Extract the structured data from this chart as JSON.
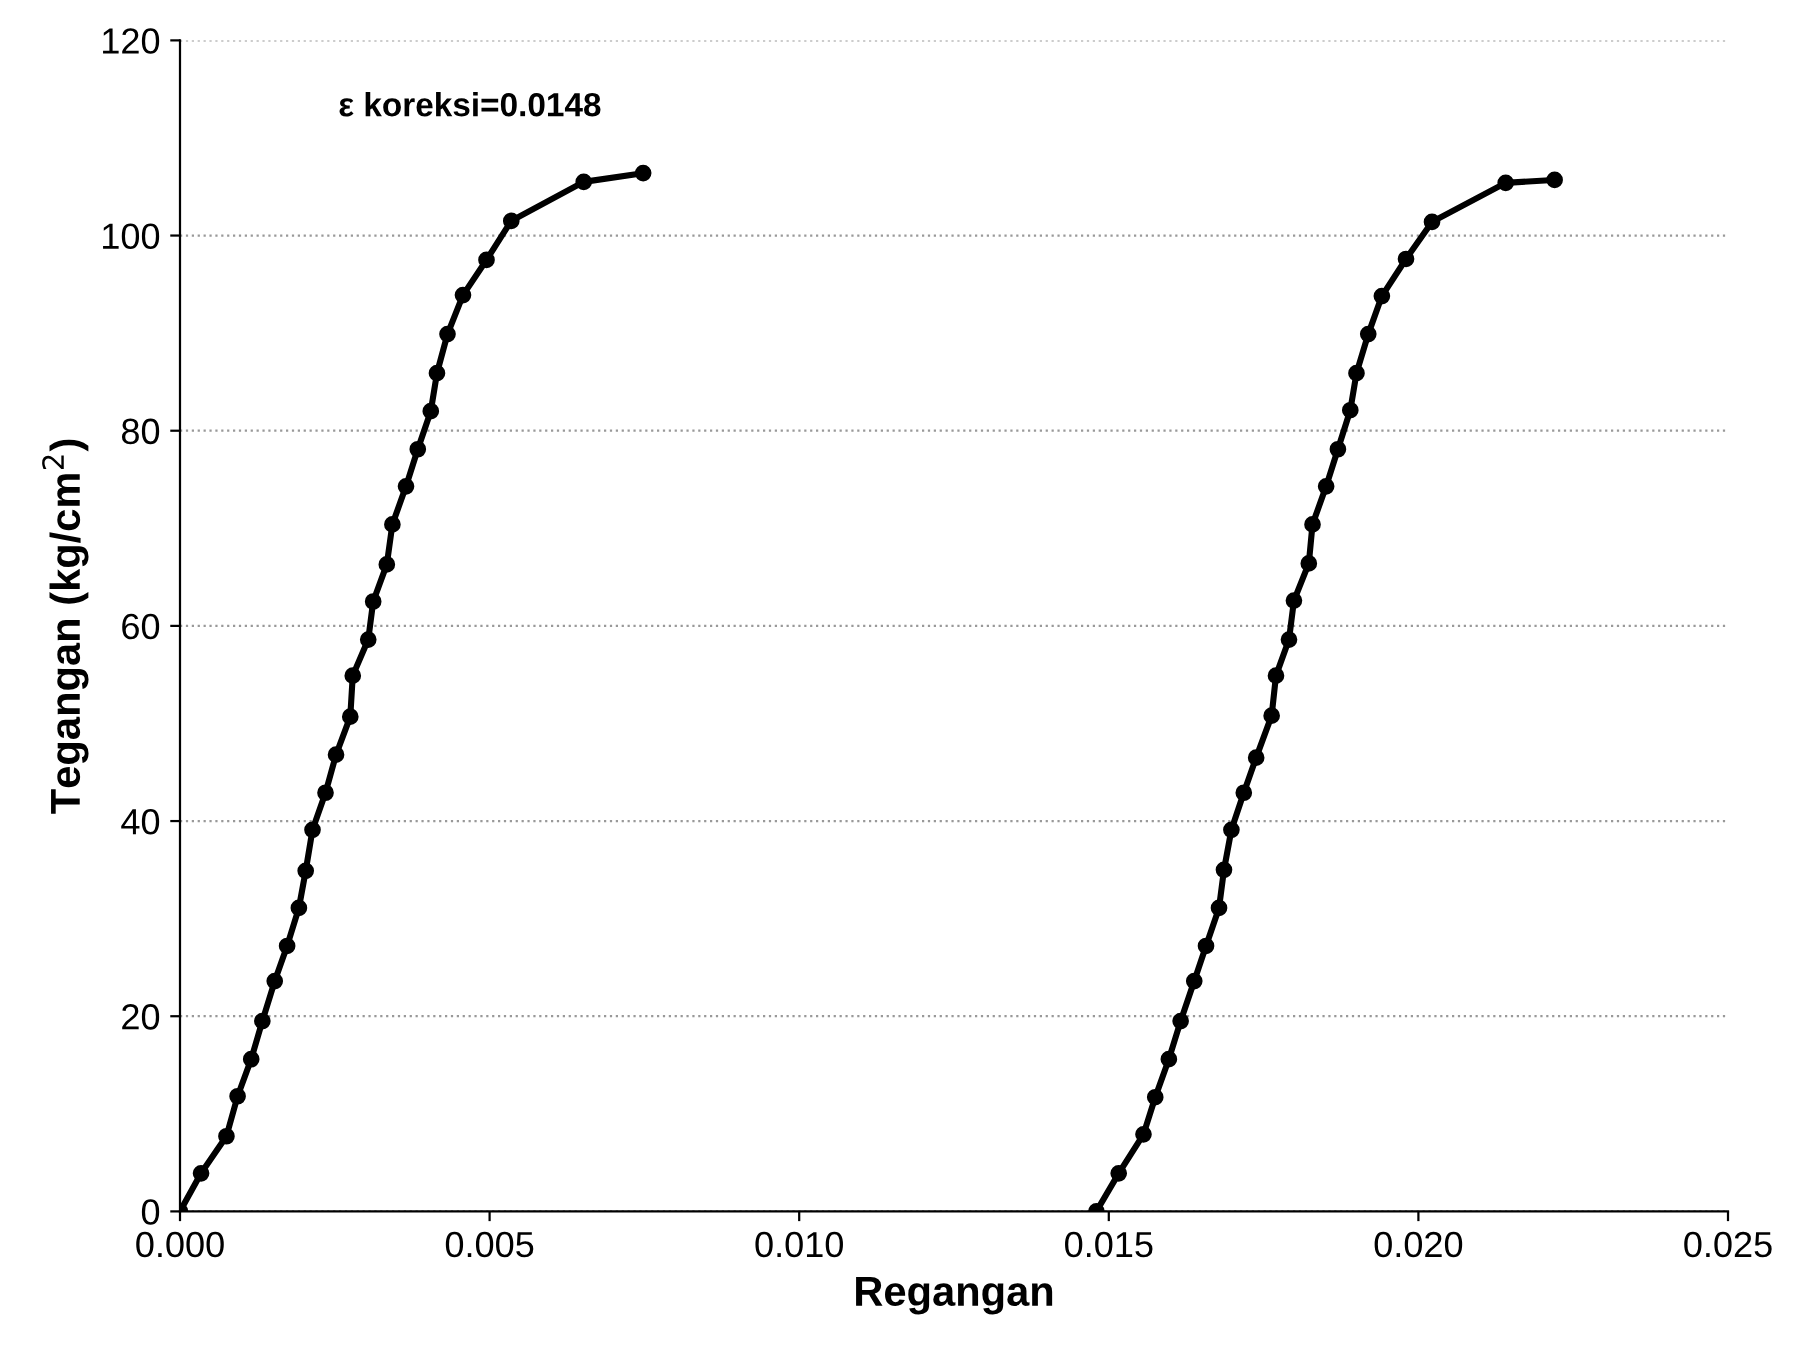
{
  "chart_data": {
    "type": "line",
    "xlabel": "Regangan",
    "ylabel": "Tegangan (kg/cm$^{2}$)",
    "annotations": [
      {
        "text": "ε koreksi=0.0148",
        "x": 0.00748,
        "y": 106.4
      }
    ],
    "series": [
      {
        "color": "#000000",
        "x": [
          0,
          0.00034,
          0.00075,
          0.00093,
          0.00115,
          0.00133,
          0.00153,
          0.00173,
          0.00192,
          0.00203,
          0.00214,
          0.00235,
          0.00252,
          0.00275,
          0.00279,
          0.00304,
          0.00312,
          0.00334,
          0.00343,
          0.00365,
          0.00384,
          0.00405,
          0.00415,
          0.00432,
          0.00457,
          0.00495,
          0.00535,
          0.00652,
          0.00748
        ],
        "values": [
          0,
          3.9,
          7.7,
          11.8,
          15.6,
          19.5,
          23.6,
          27.2,
          31.1,
          34.9,
          39.1,
          42.9,
          46.8,
          50.7,
          54.9,
          58.6,
          62.5,
          66.3,
          70.4,
          74.3,
          78.1,
          82.0,
          85.9,
          89.9,
          93.9,
          97.5,
          101.5,
          105.5,
          106.4
        ]
      },
      {
        "color": "#000000",
        "x": [
          0.0148,
          0.01516,
          0.01556,
          0.01575,
          0.01597,
          0.01616,
          0.01638,
          0.01657,
          0.01678,
          0.01686,
          0.01698,
          0.01718,
          0.01738,
          0.01763,
          0.0177,
          0.01791,
          0.01799,
          0.01823,
          0.01829,
          0.01851,
          0.0187,
          0.0189,
          0.019,
          0.01919,
          0.01941,
          0.0198,
          0.02022,
          0.02141,
          0.0222
        ],
        "values": [
          0,
          3.9,
          7.9,
          11.7,
          15.6,
          19.5,
          23.6,
          27.2,
          31.1,
          35.0,
          39.1,
          42.9,
          46.5,
          50.8,
          54.9,
          58.6,
          62.6,
          66.4,
          70.4,
          74.3,
          78.1,
          82.1,
          85.9,
          89.9,
          93.8,
          97.6,
          101.4,
          105.4,
          105.7
        ]
      }
    ],
    "xlim": [
      0,
      0.025
    ],
    "ylim": [
      0,
      120
    ],
    "xticks": [
      {
        "value": 0,
        "label": "0.000"
      },
      0.005,
      {
        "value": 0.01,
        "label": "0.010"
      },
      0.015,
      {
        "value": 0.02,
        "label": "0.020"
      },
      0.025
    ],
    "yticks": [
      0,
      20,
      40,
      60,
      80,
      100,
      120
    ],
    "grid": "y",
    "marker": "circle",
    "line_style": "solid"
  }
}
